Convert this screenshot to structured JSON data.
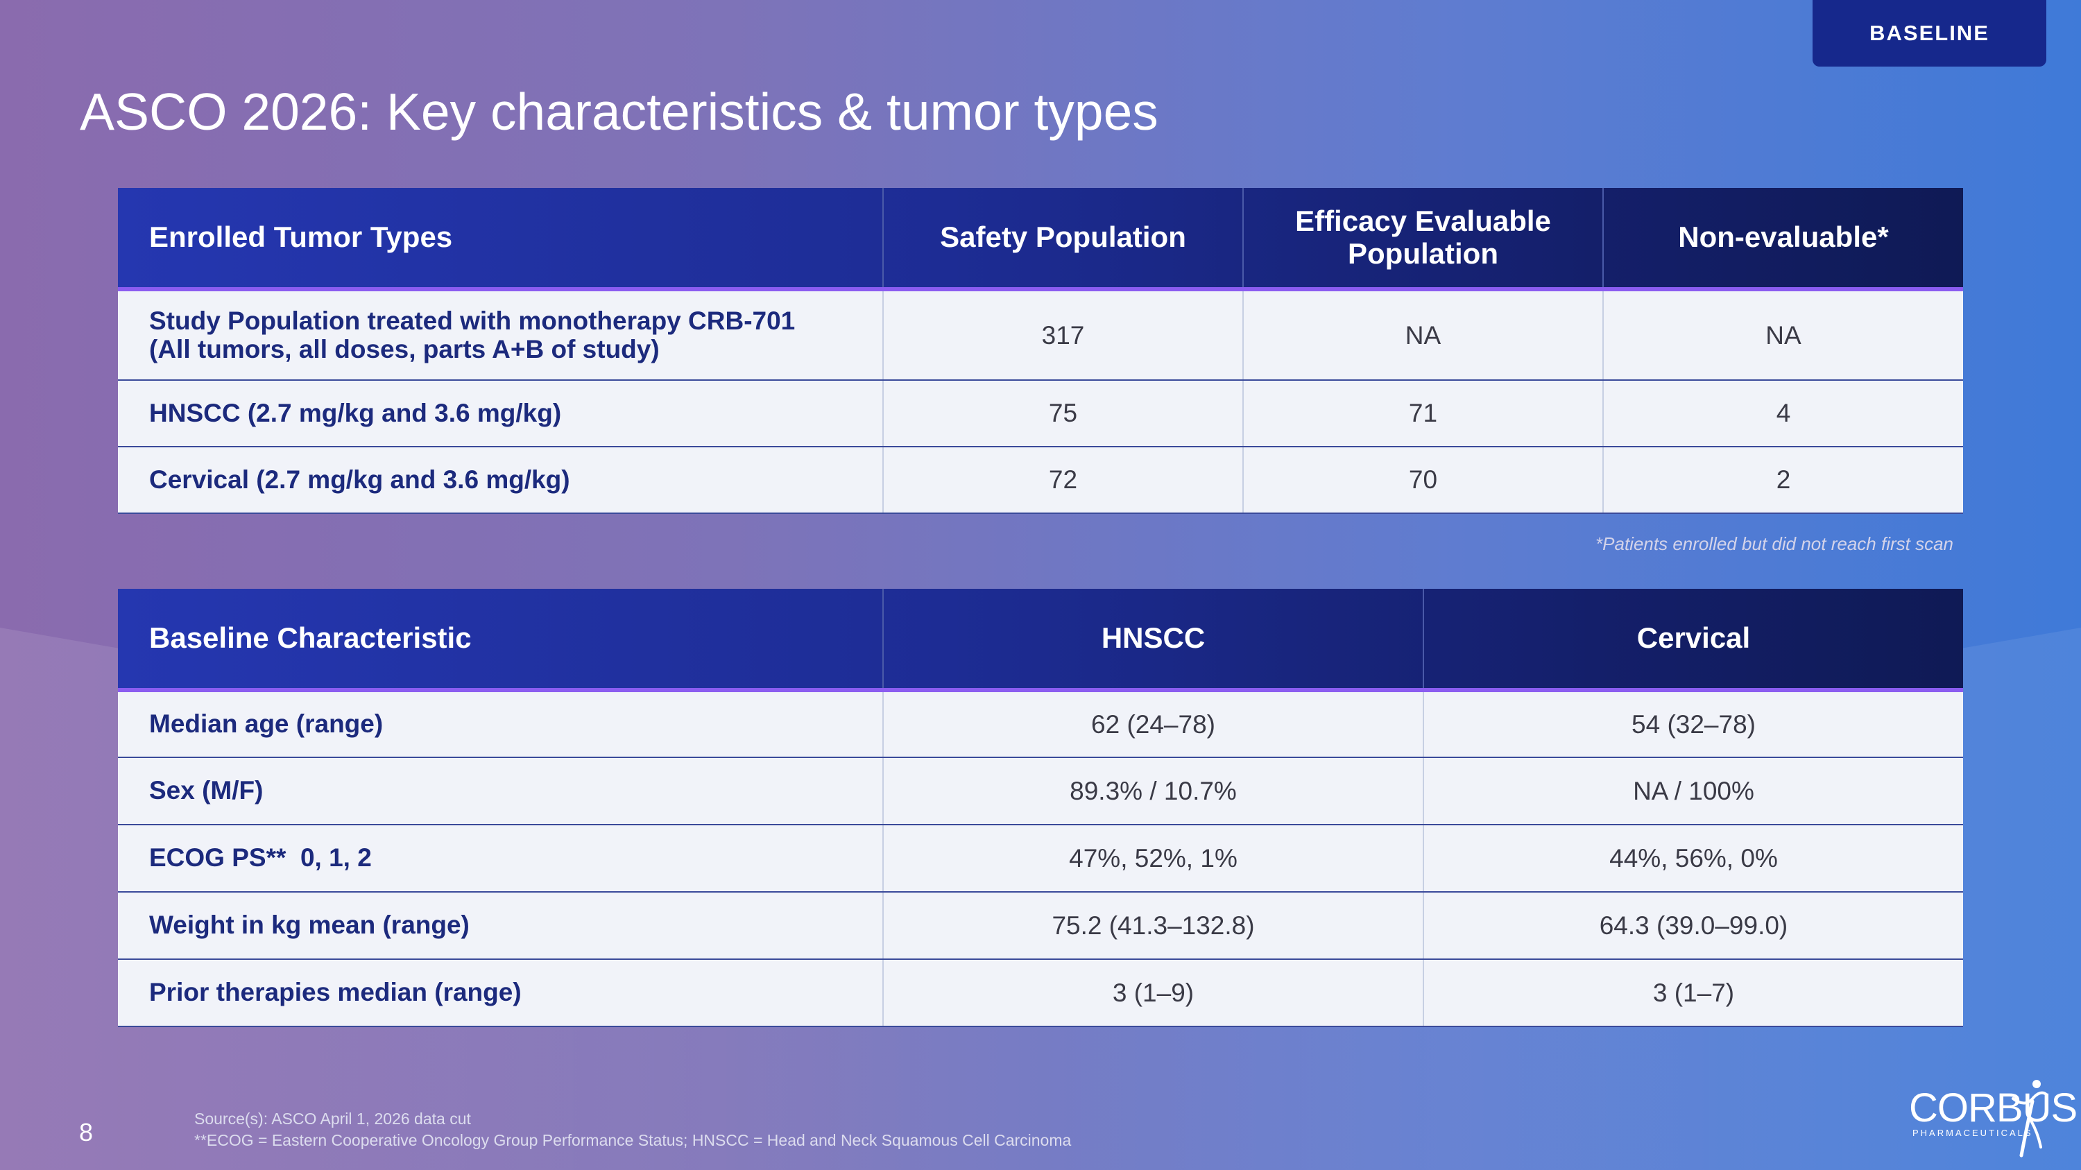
{
  "badge": "BASELINE",
  "title": "ASCO 2026: Key characteristics & tumor types",
  "tumor_table": {
    "headers": [
      "Enrolled Tumor Types",
      "Safety Population",
      "Efficacy Evaluable Population",
      "Non-evaluable*"
    ],
    "rows": [
      {
        "label_line1": "Study Population treated with monotherapy CRB-701",
        "label_line2": "(All tumors, all doses, parts A+B of study)",
        "safety": "317",
        "efficacy": "NA",
        "non_evaluable": "NA"
      },
      {
        "label_line1": "HNSCC (2.7 mg/kg and 3.6 mg/kg)",
        "safety": "75",
        "efficacy": "71",
        "non_evaluable": "4"
      },
      {
        "label_line1": "Cervical (2.7 mg/kg and 3.6 mg/kg)",
        "safety": "72",
        "efficacy": "70",
        "non_evaluable": "2"
      }
    ],
    "footnote": "*Patients enrolled but did not reach first scan"
  },
  "baseline_table": {
    "headers": [
      "Baseline Characteristic",
      "HNSCC",
      "Cervical"
    ],
    "rows": [
      {
        "label": "Median age (range)",
        "hnscc": "62 (24–78)",
        "cervical": "54 (32–78)"
      },
      {
        "label": "Sex (M/F)",
        "hnscc": "89.3% / 10.7%",
        "cervical": "NA / 100%"
      },
      {
        "label": "ECOG PS**  0, 1, 2",
        "hnscc": "47%, 52%, 1%",
        "cervical": "44%, 56%, 0%"
      },
      {
        "label": "Weight in kg mean (range)",
        "hnscc": "75.2 (41.3–132.8)",
        "cervical": "64.3 (39.0–99.0)"
      },
      {
        "label": "Prior therapies median (range)",
        "hnscc": "3 (1–9)",
        "cervical": "3 (1–7)"
      }
    ]
  },
  "footer": {
    "page_number": "8",
    "source_line1": "Source(s): ASCO April 1, 2026 data cut",
    "source_line2": "**ECOG = Eastern Cooperative Oncology Group Performance Status; HNSCC = Head and Neck Squamous Cell Carcinoma"
  },
  "logo": {
    "name": "CORBUS",
    "sub": "PHARMACEUTICALS"
  },
  "colors": {
    "header_gradient_start": "#2537b0",
    "header_gradient_end": "#0f1a55",
    "header_underline": "#8b5cf0",
    "label_text": "#1c2a7d",
    "row_bg": "#f1f3f9"
  }
}
